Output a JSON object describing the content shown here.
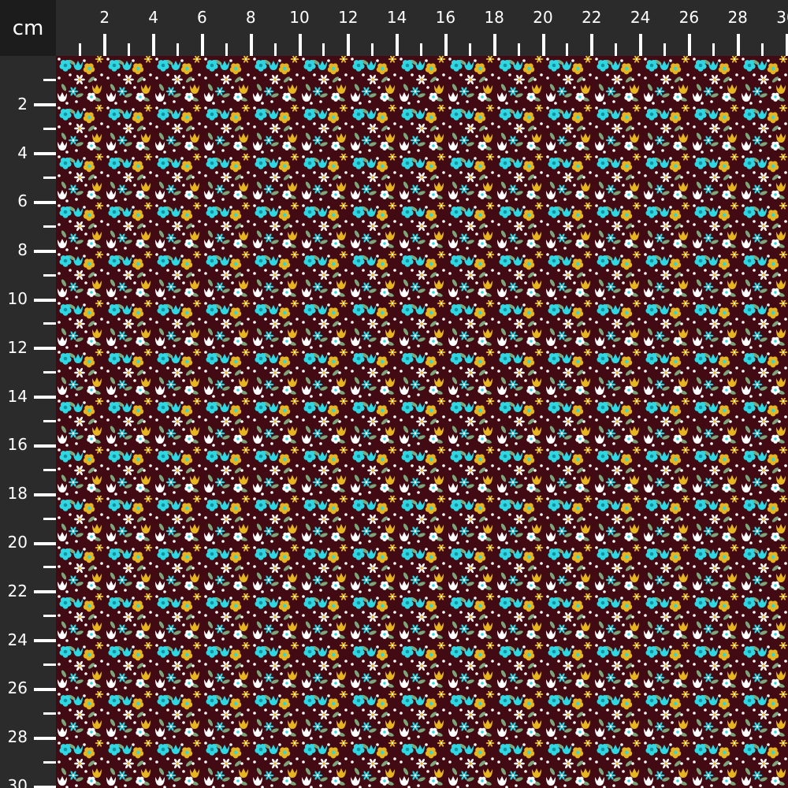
{
  "ruler": {
    "unit": "cm",
    "top_labels": [
      "2",
      "4",
      "6",
      "8",
      "10",
      "12",
      "14",
      "16",
      "18",
      "20",
      "22",
      "24",
      "26",
      "28",
      "30"
    ],
    "left_labels": [
      "2",
      "4",
      "6",
      "8",
      "10",
      "12",
      "14",
      "16",
      "18",
      "20",
      "22",
      "24",
      "26",
      "28",
      "30"
    ]
  },
  "fabric": {
    "pattern": "ditsy floral",
    "colors": {
      "background": "#420a12",
      "cyan": "#2ed8e2",
      "yellow": "#e6b51f",
      "white": "#ffffff",
      "leaf": "#7da67c",
      "cyan_center": "#1a8fa0"
    }
  }
}
